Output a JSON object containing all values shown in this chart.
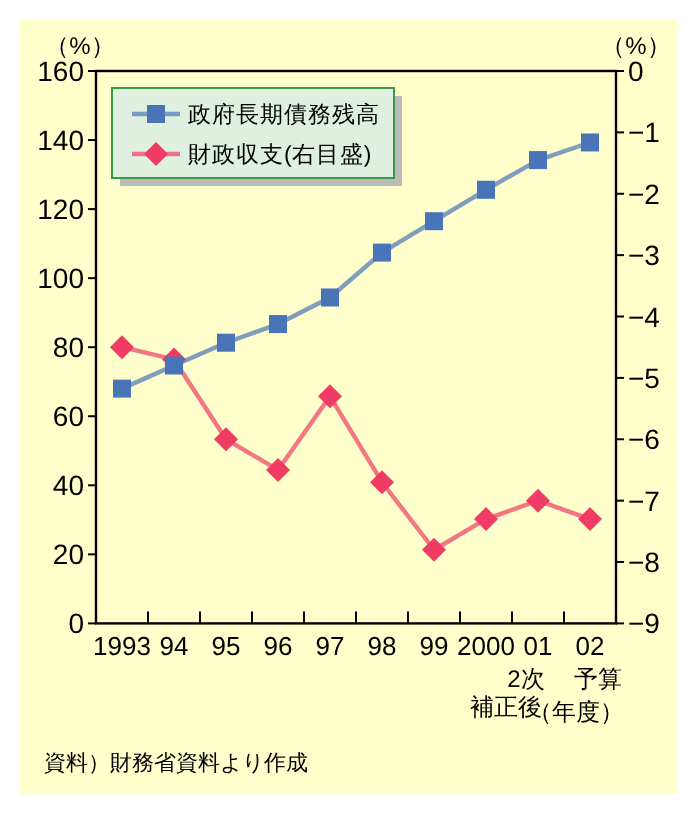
{
  "chart_data": {
    "type": "line",
    "categories": [
      "1993",
      "94",
      "95",
      "96",
      "97",
      "98",
      "99",
      "2000",
      "01",
      "02"
    ],
    "xlabel": "（年度）",
    "ylabel": "（%）",
    "y2label": "（%）",
    "ylim": [
      0,
      160
    ],
    "yticks": [
      0,
      20,
      40,
      60,
      80,
      100,
      120,
      140,
      160
    ],
    "y2lim": [
      -9,
      0
    ],
    "y2ticks": [
      -9,
      -8,
      -7,
      -6,
      -5,
      -4,
      -3,
      -2,
      -1,
      0
    ],
    "series": [
      {
        "name": "政府長期債務残高",
        "color": "#4a74b8",
        "marker": "square",
        "values": [
          68.0,
          74.7,
          81.3,
          86.7,
          94.4,
          107.4,
          116.5,
          125.6,
          134.2,
          139.3
        ]
      },
      {
        "name": "財政収支(右目盛)",
        "color": "#f03c64",
        "marker": "diamond",
        "axis": "y2",
        "values": [
          -4.5,
          -4.7,
          -6.0,
          -6.5,
          -5.3,
          -6.7,
          -7.8,
          -7.3,
          -7.0,
          -7.3
        ]
      }
    ],
    "legend": "top left",
    "annotations": [
      "2次補正後",
      "予算",
      "資料）財務省資料より作成"
    ]
  }
}
